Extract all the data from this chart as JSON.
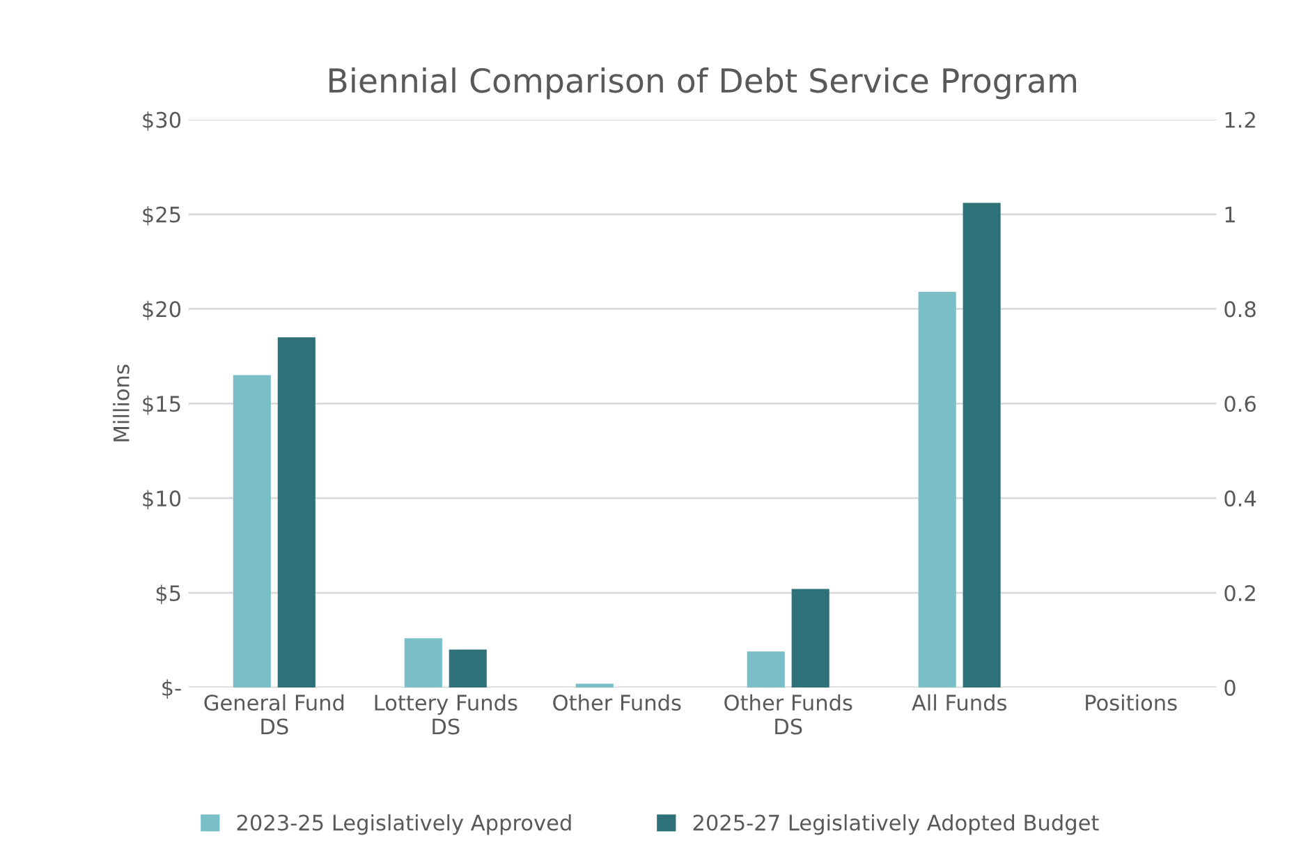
{
  "chart_data": {
    "type": "bar",
    "title": "Biennial Comparison of Debt Service Program",
    "ylabel": "Millions",
    "categories": [
      "General Fund\nDS",
      "Lottery Funds\nDS",
      "Other Funds",
      "Other Funds\nDS",
      "All Funds",
      "Positions"
    ],
    "series": [
      {
        "name": "2023-25 Legislatively Approved",
        "color": "#7abfc7",
        "values": [
          16.5,
          2.6,
          0.2,
          1.9,
          20.9,
          null
        ]
      },
      {
        "name": "2025-27 Legislatively Adopted Budget",
        "color": "#2e7178",
        "values": [
          18.5,
          2.0,
          null,
          5.2,
          25.6,
          null
        ]
      }
    ],
    "ylim": [
      0,
      30
    ],
    "yticks": [
      {
        "value": 0,
        "label": "$-"
      },
      {
        "value": 5,
        "label": "$5"
      },
      {
        "value": 10,
        "label": "$10"
      },
      {
        "value": 15,
        "label": "$15"
      },
      {
        "value": 20,
        "label": "$20"
      },
      {
        "value": 25,
        "label": "$25"
      },
      {
        "value": 30,
        "label": "$30"
      }
    ],
    "y2lim": [
      0,
      1.2
    ],
    "y2ticks": [
      0,
      0.2,
      0.4,
      0.6,
      0.8,
      1,
      1.2
    ],
    "grid": "y",
    "legend": "bottom"
  }
}
